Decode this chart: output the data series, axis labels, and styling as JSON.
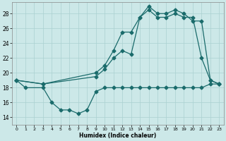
{
  "xlabel": "Humidex (Indice chaleur)",
  "xlim": [
    -0.5,
    23.5
  ],
  "ylim": [
    13.0,
    29.5
  ],
  "yticks": [
    14,
    16,
    18,
    20,
    22,
    24,
    26,
    28
  ],
  "xticks": [
    0,
    1,
    2,
    3,
    4,
    5,
    6,
    7,
    8,
    9,
    10,
    11,
    12,
    13,
    14,
    15,
    16,
    17,
    18,
    19,
    20,
    21,
    22,
    23
  ],
  "bg_color": "#cce8e8",
  "grid_color": "#aad0d0",
  "line_color": "#1a6b6b",
  "line1_x": [
    0,
    1,
    3,
    4,
    5,
    6,
    7,
    8,
    9,
    10,
    11,
    12,
    13,
    14,
    15,
    16,
    17,
    18,
    19,
    20,
    21,
    22,
    23
  ],
  "line1_y": [
    19,
    18,
    18,
    16,
    15,
    15,
    14.5,
    15,
    17.5,
    18,
    18,
    18,
    18,
    18,
    18,
    18,
    18,
    18,
    18,
    18,
    18,
    18.5,
    18.5
  ],
  "line2_x": [
    0,
    3,
    9,
    10,
    11,
    12,
    13,
    14,
    15,
    16,
    17,
    18,
    19,
    20,
    21,
    22,
    23
  ],
  "line2_y": [
    19,
    18.5,
    19.5,
    20.5,
    22,
    23,
    22.5,
    27.5,
    28.5,
    27.5,
    27.5,
    28.0,
    27.5,
    27.5,
    22,
    19,
    18.5
  ],
  "line3_x": [
    0,
    3,
    9,
    10,
    11,
    12,
    13,
    14,
    15,
    16,
    17,
    18,
    19,
    20,
    21,
    22,
    23
  ],
  "line3_y": [
    19,
    18.5,
    20,
    21,
    23,
    25.5,
    25.5,
    27.5,
    29,
    28,
    28,
    28.5,
    28,
    27,
    27,
    19,
    18.5
  ]
}
